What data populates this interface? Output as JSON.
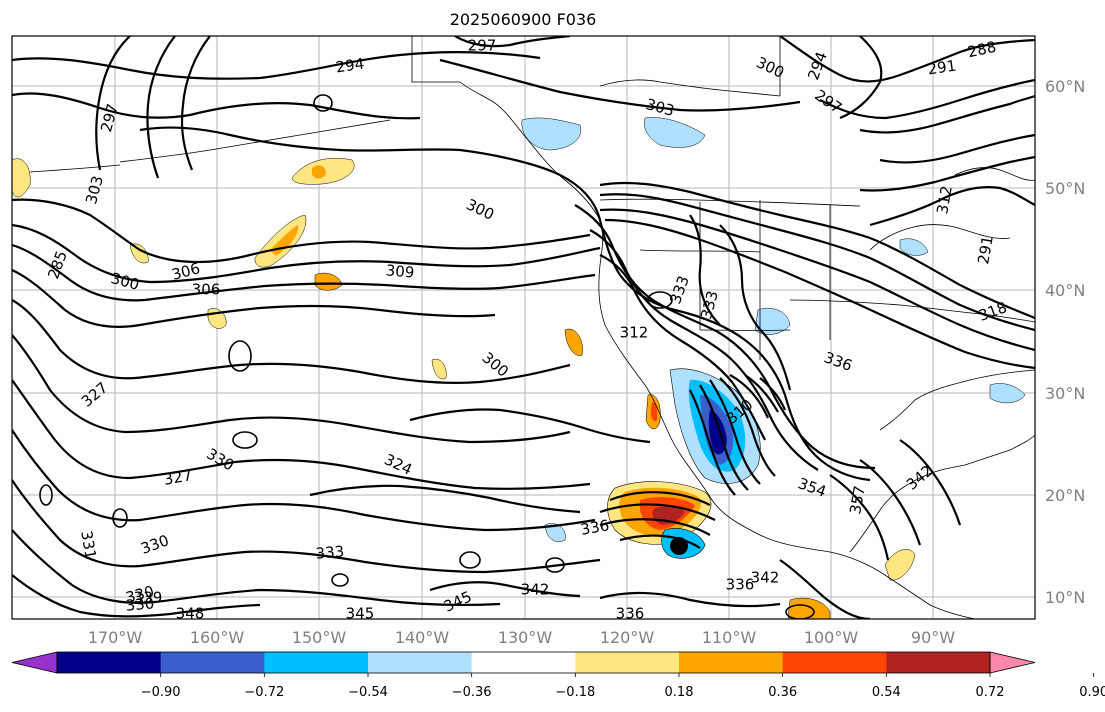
{
  "title": "2025060900 F036",
  "longitude_labels": [
    "170°W",
    "160°W",
    "150°W",
    "140°W",
    "130°W",
    "120°W",
    "110°W",
    "100°W",
    "90°W"
  ],
  "latitude_labels": [
    "60°N",
    "50°N",
    "40°N",
    "30°N",
    "20°N",
    "10°N"
  ],
  "colorbar": {
    "colors": [
      "#9932cc",
      "#00008b",
      "#3a5fcd",
      "#00bfff",
      "#b0e0ff",
      "#ffffff",
      "#ffe680",
      "#ffa500",
      "#ff4500",
      "#b22222",
      "#ff88aa"
    ],
    "tick_labels": [
      "−0.90",
      "−0.72",
      "−0.54",
      "−0.36",
      "−0.18",
      "0.18",
      "0.36",
      "0.54",
      "0.72",
      "0.90"
    ]
  },
  "contour_labels": [
    "297",
    "288",
    "291",
    "294",
    "300",
    "297",
    "294",
    "303",
    "300",
    "303",
    "285",
    "300",
    "306",
    "306",
    "309",
    "300",
    "312",
    "333",
    "330",
    "333",
    "330",
    "327",
    "327",
    "324",
    "331",
    "336",
    "330",
    "330",
    "339",
    "342",
    "345",
    "348",
    "345",
    "336",
    "336",
    "342",
    "354",
    "357",
    "342",
    "333",
    "336",
    "318",
    "312",
    "291",
    "297",
    "310"
  ]
}
